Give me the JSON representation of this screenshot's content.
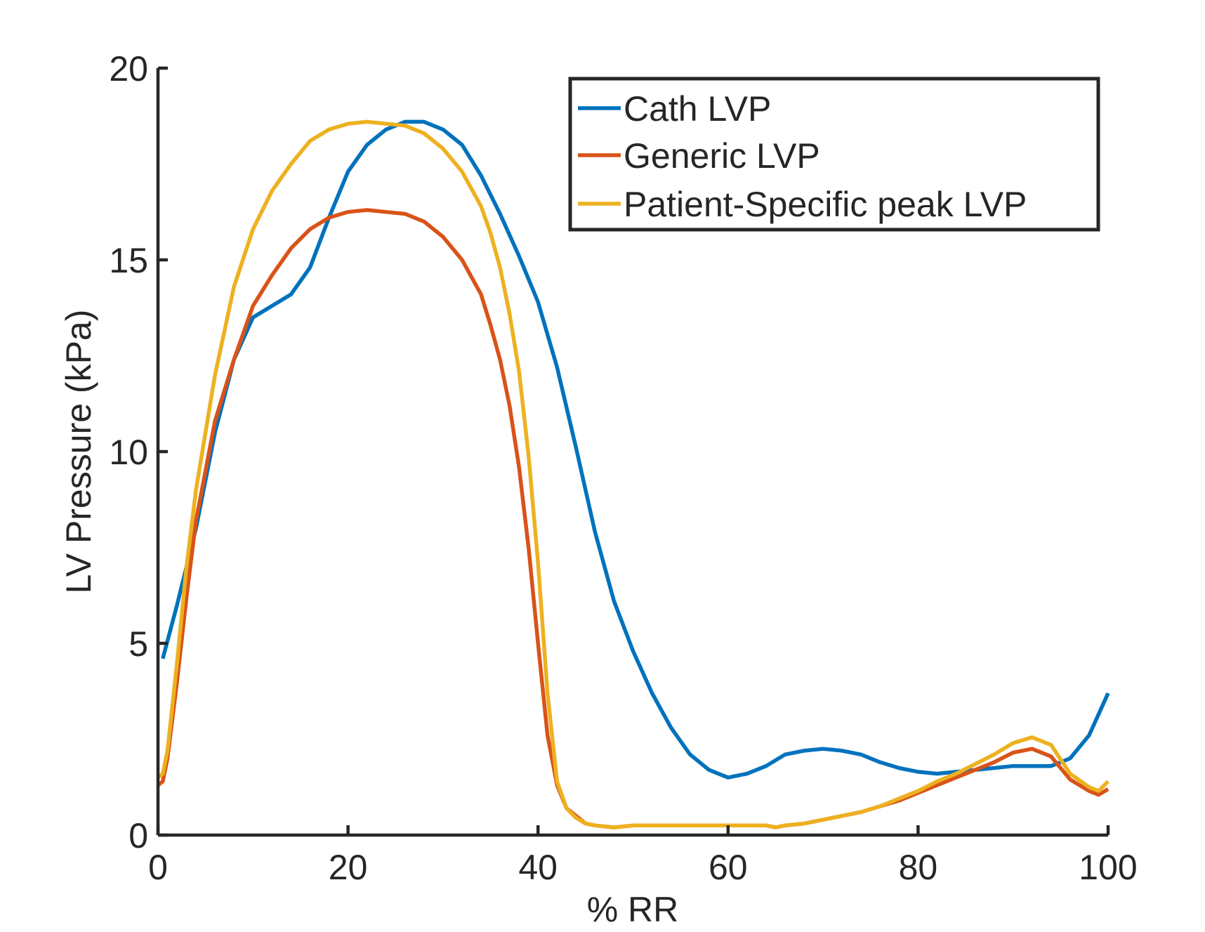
{
  "chart_data": {
    "type": "line",
    "title": "",
    "xlabel": "% RR",
    "ylabel": "LV Pressure (kPa)",
    "xlim": [
      0,
      100
    ],
    "ylim": [
      0,
      20
    ],
    "xticks": [
      0,
      20,
      40,
      60,
      80,
      100
    ],
    "yticks": [
      0,
      5,
      10,
      15,
      20
    ],
    "grid": false,
    "legend_position": "top-right",
    "series": [
      {
        "name": "Cath LVP",
        "color": "#0072BD",
        "x": [
          0.5,
          2,
          4,
          6,
          8,
          10,
          12,
          14,
          16,
          18,
          20,
          22,
          24,
          26,
          28,
          30,
          32,
          34,
          36,
          38,
          40,
          42,
          44,
          46,
          48,
          50,
          52,
          54,
          56,
          58,
          60,
          62,
          64,
          66,
          68,
          70,
          72,
          74,
          76,
          78,
          80,
          82,
          84,
          86,
          88,
          90,
          92,
          94,
          96,
          98,
          100
        ],
        "y": [
          4.6,
          6.0,
          8.0,
          10.5,
          12.4,
          13.5,
          13.8,
          14.1,
          14.8,
          16.1,
          17.3,
          18.0,
          18.4,
          18.6,
          18.6,
          18.4,
          18.0,
          17.2,
          16.2,
          15.1,
          13.9,
          12.2,
          10.1,
          7.9,
          6.1,
          4.8,
          3.7,
          2.8,
          2.1,
          1.7,
          1.5,
          1.6,
          1.8,
          2.1,
          2.2,
          2.25,
          2.2,
          2.1,
          1.9,
          1.75,
          1.65,
          1.6,
          1.65,
          1.7,
          1.75,
          1.8,
          1.8,
          1.8,
          2.0,
          2.6,
          3.7
        ]
      },
      {
        "name": "Generic LVP",
        "color": "#D95319",
        "x": [
          0,
          0.5,
          1,
          2,
          3,
          4,
          6,
          8,
          10,
          12,
          14,
          16,
          18,
          20,
          22,
          24,
          26,
          28,
          30,
          32,
          34,
          35,
          36,
          37,
          38,
          39,
          40,
          41,
          42,
          43,
          44,
          45,
          46,
          48,
          50,
          52,
          54,
          56,
          58,
          60,
          62,
          64,
          65,
          66,
          68,
          70,
          72,
          74,
          76,
          78,
          80,
          82,
          84,
          86,
          88,
          90,
          92,
          94,
          96,
          98,
          99,
          100
        ],
        "y": [
          1.3,
          1.4,
          2.0,
          4.0,
          6.2,
          8.2,
          10.8,
          12.4,
          13.8,
          14.6,
          15.3,
          15.8,
          16.1,
          16.25,
          16.3,
          16.25,
          16.2,
          16.0,
          15.6,
          15.0,
          14.1,
          13.3,
          12.4,
          11.2,
          9.6,
          7.5,
          5.0,
          2.6,
          1.3,
          0.7,
          0.5,
          0.3,
          0.25,
          0.2,
          0.25,
          0.25,
          0.25,
          0.25,
          0.25,
          0.25,
          0.25,
          0.25,
          0.2,
          0.25,
          0.3,
          0.4,
          0.5,
          0.6,
          0.75,
          0.9,
          1.1,
          1.3,
          1.5,
          1.7,
          1.9,
          2.15,
          2.25,
          2.05,
          1.45,
          1.15,
          1.05,
          1.2
        ]
      },
      {
        "name": "Patient-Specific peak LVP",
        "color": "#EDB120",
        "x": [
          0,
          0.5,
          1,
          2,
          3,
          4,
          6,
          8,
          10,
          12,
          14,
          16,
          18,
          20,
          22,
          24,
          26,
          28,
          30,
          32,
          34,
          35,
          36,
          37,
          38,
          39,
          40,
          41,
          42,
          43,
          44,
          45,
          46,
          48,
          50,
          52,
          54,
          56,
          58,
          60,
          62,
          64,
          65,
          66,
          68,
          70,
          72,
          74,
          76,
          78,
          80,
          82,
          84,
          86,
          88,
          90,
          92,
          94,
          96,
          98,
          99,
          100
        ],
        "y": [
          1.5,
          1.6,
          2.2,
          4.5,
          7.0,
          9.0,
          12.0,
          14.3,
          15.8,
          16.8,
          17.5,
          18.1,
          18.4,
          18.55,
          18.6,
          18.55,
          18.5,
          18.3,
          17.9,
          17.3,
          16.4,
          15.7,
          14.8,
          13.6,
          12.1,
          9.9,
          7.1,
          3.7,
          1.4,
          0.7,
          0.45,
          0.3,
          0.25,
          0.2,
          0.25,
          0.25,
          0.25,
          0.25,
          0.25,
          0.25,
          0.25,
          0.25,
          0.2,
          0.25,
          0.3,
          0.4,
          0.5,
          0.6,
          0.75,
          0.95,
          1.15,
          1.4,
          1.6,
          1.85,
          2.1,
          2.4,
          2.55,
          2.35,
          1.6,
          1.25,
          1.15,
          1.4
        ]
      }
    ]
  }
}
